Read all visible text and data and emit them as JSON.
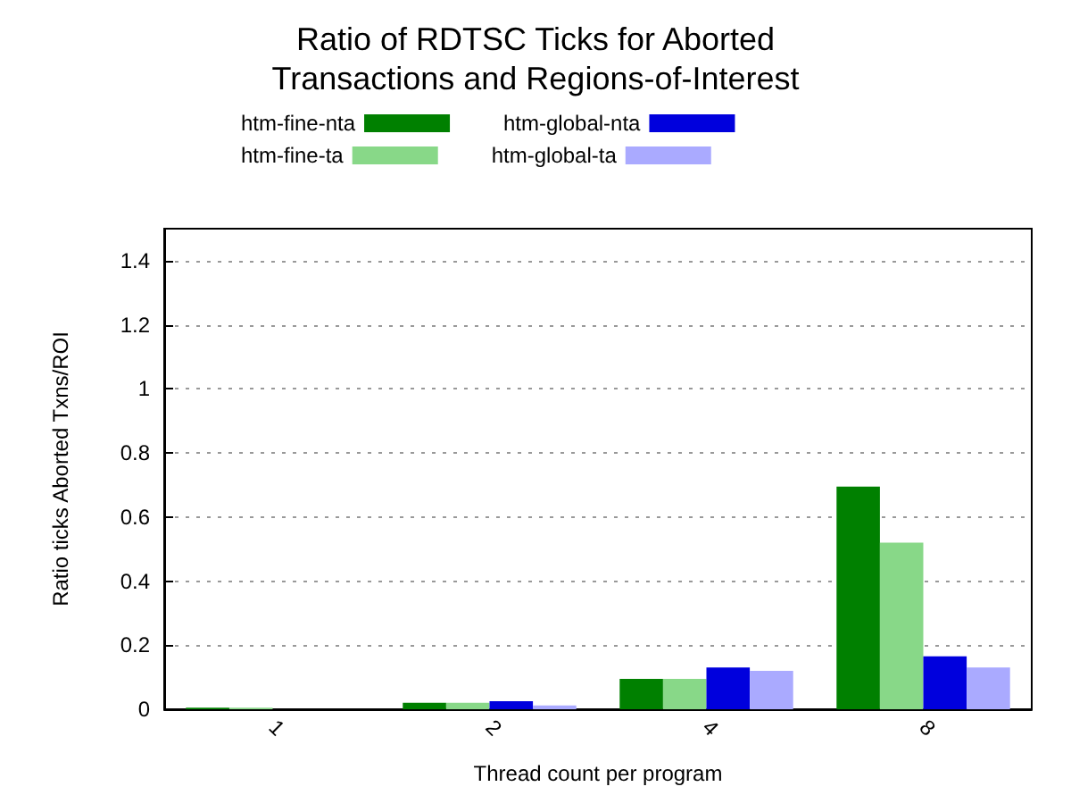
{
  "chart_data": {
    "type": "bar",
    "title": "Ratio of RDTSC Ticks for Aborted\nTransactions and Regions-of-Interest",
    "xlabel": "Thread count per program",
    "ylabel": "Ratio ticks Aborted Txns/ROI",
    "categories": [
      "1",
      "2",
      "4",
      "8"
    ],
    "series": [
      {
        "name": "htm-fine-nta",
        "color": "#008000",
        "values": [
          0.005,
          0.02,
          0.095,
          0.695
        ]
      },
      {
        "name": "htm-fine-ta",
        "color": "#88d888",
        "values": [
          0.005,
          0.02,
          0.095,
          0.52
        ]
      },
      {
        "name": "htm-global-nta",
        "color": "#0000dd",
        "values": [
          0,
          0.025,
          0.13,
          0.165
        ]
      },
      {
        "name": "htm-global-ta",
        "color": "#aaaaff",
        "values": [
          0,
          0.012,
          0.12,
          0.13
        ]
      }
    ],
    "ylim": [
      0,
      1.5
    ],
    "yticks": [
      0,
      0.2,
      0.4,
      0.6,
      0.8,
      1,
      1.2,
      1.4
    ],
    "grid": "y",
    "legend": "top"
  }
}
